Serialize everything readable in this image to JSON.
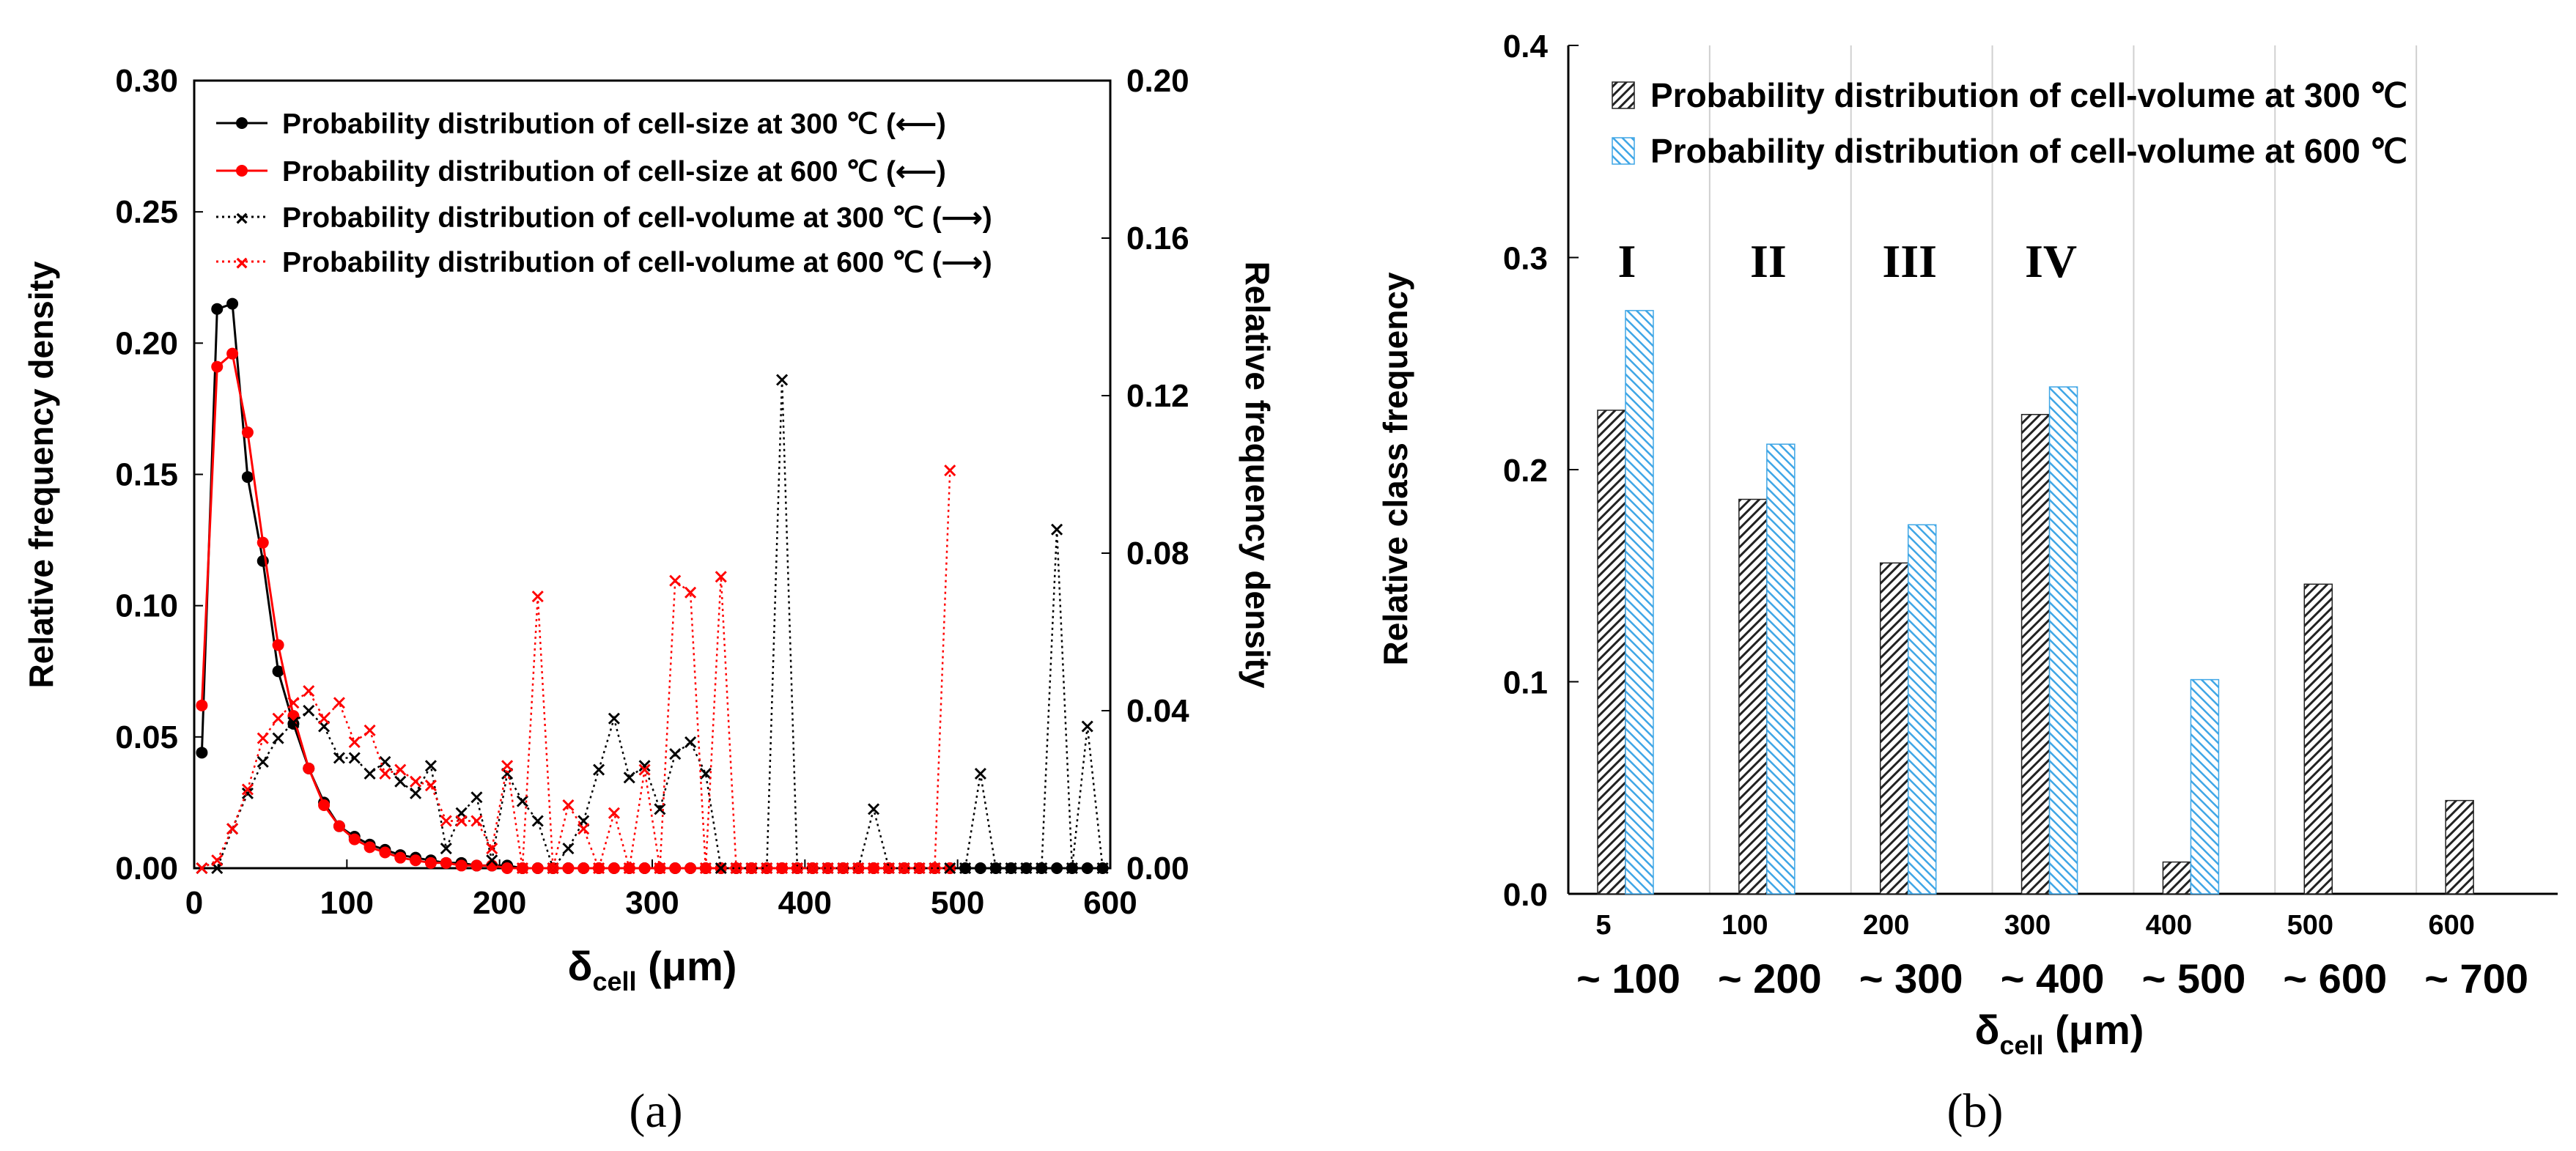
{
  "chart_data": [
    {
      "id": "a",
      "type": "line",
      "panel_label": "(a)",
      "xlabel": {
        "main": "δ",
        "sub": "cell",
        "unit": " (μm)"
      },
      "ylabel_left": "Relative frequency density",
      "ylabel_right": "Relative frequency density",
      "xlim": [
        0,
        600
      ],
      "ylim_left": [
        0,
        0.3
      ],
      "ylim_right": [
        0,
        0.2
      ],
      "x_ticks": [
        "0",
        "100",
        "200",
        "300",
        "400",
        "500",
        "600"
      ],
      "y_ticks_left": [
        "0.00",
        "0.05",
        "0.10",
        "0.15",
        "0.20",
        "0.25",
        "0.30"
      ],
      "y_ticks_right": [
        "0.00",
        "0.04",
        "0.08",
        "0.12",
        "0.16",
        "0.20"
      ],
      "series": [
        {
          "name": "Probability distribution of cell-size at 300 ℃",
          "arrow": "(⟵)",
          "axis": "left",
          "color": "#000000",
          "marker": "dot",
          "style": "solid",
          "x": [
            5,
            15,
            25,
            35,
            45,
            55,
            65,
            75,
            85,
            95,
            105,
            115,
            125,
            135,
            145,
            155,
            165,
            175,
            185,
            195,
            205,
            215,
            225,
            235,
            245,
            255,
            265,
            275,
            285,
            295,
            305,
            315,
            325,
            335,
            345,
            355,
            365,
            375,
            385,
            395,
            405,
            415,
            425,
            435,
            445,
            455,
            465,
            475,
            485,
            495,
            505,
            515,
            525,
            535,
            545,
            555,
            565,
            575,
            585,
            595
          ],
          "values": [
            0.044,
            0.213,
            0.215,
            0.149,
            0.117,
            0.075,
            0.055,
            0.038,
            0.025,
            0.016,
            0.012,
            0.009,
            0.007,
            0.005,
            0.004,
            0.003,
            0.002,
            0.002,
            0.001,
            0.001,
            0.001,
            0,
            0,
            0,
            0,
            0,
            0,
            0,
            0,
            0,
            0,
            0,
            0,
            0,
            0,
            0,
            0,
            0,
            0,
            0,
            0,
            0,
            0,
            0,
            0,
            0,
            0,
            0,
            0,
            0,
            0,
            0,
            0,
            0,
            0,
            0,
            0,
            0,
            0,
            0
          ]
        },
        {
          "name": "Probability distribution of cell-size at 600 ℃",
          "arrow": "(⟵)",
          "axis": "left",
          "color": "#ff0000",
          "marker": "dot",
          "style": "solid",
          "x": [
            5,
            15,
            25,
            35,
            45,
            55,
            65,
            75,
            85,
            95,
            105,
            115,
            125,
            135,
            145,
            155,
            165,
            175,
            185,
            195,
            205,
            215,
            225,
            235,
            245,
            255,
            265,
            275,
            285,
            295,
            305,
            315,
            325,
            335,
            345,
            355,
            365,
            375,
            385,
            395,
            405,
            415,
            425,
            435,
            445,
            455,
            465,
            475,
            485,
            495
          ],
          "values": [
            0.062,
            0.191,
            0.196,
            0.166,
            0.124,
            0.085,
            0.058,
            0.038,
            0.024,
            0.016,
            0.011,
            0.008,
            0.006,
            0.004,
            0.003,
            0.002,
            0.002,
            0.001,
            0.001,
            0.001,
            0,
            0,
            0,
            0,
            0,
            0,
            0,
            0,
            0,
            0,
            0,
            0,
            0,
            0,
            0,
            0,
            0,
            0,
            0,
            0,
            0,
            0,
            0,
            0,
            0,
            0,
            0,
            0,
            0,
            0
          ]
        },
        {
          "name": "Probability distribution of cell-volume at 300 ℃",
          "arrow": "(⟶)",
          "axis": "right",
          "color": "#000000",
          "marker": "x",
          "style": "dotted",
          "x": [
            5,
            15,
            25,
            35,
            45,
            55,
            65,
            75,
            85,
            95,
            105,
            115,
            125,
            135,
            145,
            155,
            165,
            175,
            185,
            195,
            205,
            215,
            225,
            235,
            245,
            255,
            265,
            275,
            285,
            295,
            305,
            315,
            325,
            335,
            345,
            355,
            365,
            375,
            385,
            395,
            405,
            415,
            425,
            435,
            445,
            455,
            465,
            475,
            485,
            495,
            505,
            515,
            525,
            535,
            545,
            555,
            565,
            575,
            585,
            595
          ],
          "values": [
            0,
            0,
            0.01,
            0.019,
            0.027,
            0.033,
            0.037,
            0.04,
            0.036,
            0.028,
            0.028,
            0.024,
            0.027,
            0.022,
            0.019,
            0.026,
            0.005,
            0.014,
            0.018,
            0.002,
            0.024,
            0.017,
            0.012,
            0,
            0.005,
            0.012,
            0.025,
            0.038,
            0.023,
            0.026,
            0.015,
            0.029,
            0.032,
            0.024,
            0,
            0,
            0,
            0,
            0.124,
            0,
            0,
            0,
            0,
            0,
            0.015,
            0,
            0,
            0,
            0,
            0,
            0,
            0.024,
            0,
            0,
            0,
            0,
            0.086,
            0,
            0.036,
            0
          ]
        },
        {
          "name": "Probability distribution of cell-volume at 600 ℃",
          "arrow": "(⟶)",
          "axis": "right",
          "color": "#ff0000",
          "marker": "x",
          "style": "dotted",
          "x": [
            5,
            15,
            25,
            35,
            45,
            55,
            65,
            75,
            85,
            95,
            105,
            115,
            125,
            135,
            145,
            155,
            165,
            175,
            185,
            195,
            205,
            215,
            225,
            235,
            245,
            255,
            265,
            275,
            285,
            295,
            305,
            315,
            325,
            335,
            345,
            355,
            365,
            375,
            385,
            395,
            405,
            415,
            425,
            435,
            445,
            455,
            465,
            475,
            485,
            495
          ],
          "values": [
            0,
            0.002,
            0.01,
            0.02,
            0.033,
            0.038,
            0.042,
            0.045,
            0.038,
            0.042,
            0.032,
            0.035,
            0.024,
            0.025,
            0.022,
            0.021,
            0.012,
            0.012,
            0.012,
            0.005,
            0.026,
            0,
            0.069,
            0,
            0.016,
            0.01,
            0,
            0.014,
            0,
            0.025,
            0,
            0.073,
            0.07,
            0,
            0.074,
            0,
            0,
            0,
            0,
            0,
            0,
            0,
            0,
            0,
            0,
            0,
            0,
            0,
            0,
            0.101
          ]
        }
      ]
    },
    {
      "id": "b",
      "type": "bar",
      "panel_label": "(b)",
      "xlabel": {
        "main": "δ",
        "sub": "cell",
        "unit": " (μm)"
      },
      "ylabel": "Relative class frequency",
      "ylim": [
        0,
        0.4
      ],
      "y_ticks": [
        "0.0",
        "0.1",
        "0.2",
        "0.3",
        "0.4"
      ],
      "categories": [
        {
          "start": "5",
          "end": "~ 100"
        },
        {
          "start": "100",
          "end": "~ 200"
        },
        {
          "start": "200",
          "end": "~ 300"
        },
        {
          "start": "300",
          "end": "~ 400"
        },
        {
          "start": "400",
          "end": "~ 500"
        },
        {
          "start": "500",
          "end": "~ 600"
        },
        {
          "start": "600",
          "end": "~ 700"
        }
      ],
      "group_labels": [
        "I",
        "II",
        "III",
        "IV"
      ],
      "series": [
        {
          "name": "Probability distribution of cell-volume at 300 ℃",
          "color": "#333333",
          "values": [
            0.228,
            0.186,
            0.156,
            0.226,
            0.015,
            0.146,
            0.044
          ]
        },
        {
          "name": "Probability distribution of cell-volume at 600 ℃",
          "color": "#3fa6e6",
          "values": [
            0.275,
            0.212,
            0.174,
            0.239,
            0.101,
            0,
            0
          ]
        }
      ]
    }
  ]
}
